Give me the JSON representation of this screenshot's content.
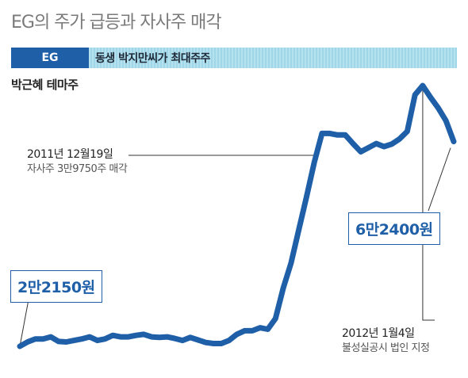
{
  "title": "EG의 주가 급등과 자사주 매각",
  "banner": {
    "ticker": "EG",
    "text": "동생 박지만씨가 최대주주"
  },
  "theme_label": "박근혜 테마주",
  "annotations": {
    "sale": {
      "date": "2011년 12월19일",
      "desc": "자사주 3만9750주 매각"
    },
    "disclosure": {
      "date": "2012년 1월4일",
      "desc": "불성실공시 법인 지정"
    }
  },
  "price_labels": {
    "start": "2만2150원",
    "end": "6만2400원"
  },
  "colors": {
    "line": "#1f5fa8",
    "banner_accent": "#1f5fa8",
    "banner_bg": "#a8dbea"
  },
  "chart_data": {
    "type": "line",
    "title": "EG의 주가 급등과 자사주 매각",
    "xlabel": "",
    "ylabel": "",
    "grid": false,
    "legend": "none",
    "y_unit": "원",
    "ylim": [
      22150,
      72000
    ],
    "series": [
      {
        "values": [
          22150,
          23000,
          23600,
          23600,
          24000,
          23100,
          23000,
          23300,
          23600,
          24000,
          23300,
          23600,
          24300,
          24000,
          24000,
          24300,
          24500,
          24000,
          23900,
          24000,
          23700,
          23300,
          23900,
          23400,
          22900,
          22700,
          22700,
          23300,
          24500,
          25200,
          25200,
          25800,
          25500,
          27600,
          33600,
          38500,
          45000,
          51500,
          58300,
          64000,
          64000,
          63700,
          63700,
          62000,
          60400,
          61200,
          62000,
          61400,
          61900,
          62900,
          64400,
          71600,
          73400,
          71100,
          69000,
          66500,
          62400
        ]
      }
    ]
  }
}
